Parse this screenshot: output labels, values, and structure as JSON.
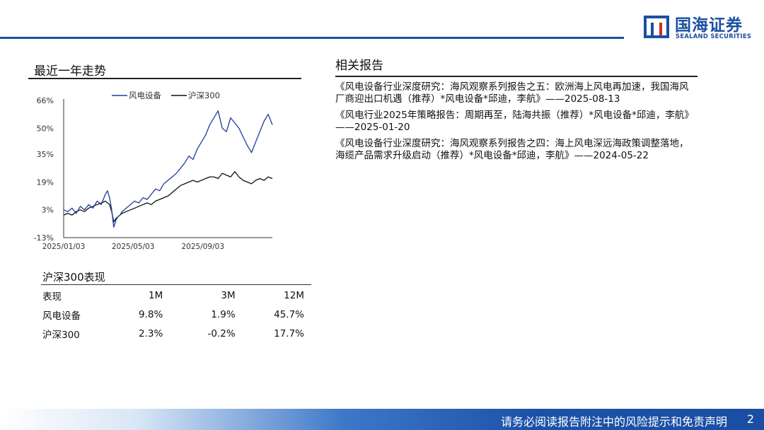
{
  "brand": {
    "name_cn": "国海证券",
    "name_en": "SEALAND SECURITIES",
    "color": "#1b4fa0"
  },
  "left": {
    "title": "最近一年走势"
  },
  "right": {
    "title": "相关报告",
    "reports": [
      "《风电设备行业深度研究：海风观察系列报告之五：欧洲海上风电再加速，我国海风厂商迎出口机遇（推荐）*风电设备*邱迪，李航》——2025-08-13",
      "《风电行业2025年策略报告：周期再至，陆海共振（推荐）*风电设备*邱迪，李航》——2025-01-20",
      "《风电设备行业深度研究：海风观察系列报告之四：海上风电深远海政策调整落地，海缆产品需求升级启动（推荐）*风电设备*邱迪，李航》——2024-05-22"
    ]
  },
  "chart_data": {
    "type": "line",
    "title": "",
    "xlabel": "",
    "ylabel": "",
    "x_range": [
      "2025/01/03",
      "2026/01/03"
    ],
    "ylim": [
      -13,
      66
    ],
    "y_ticks": [
      "66%",
      "50%",
      "35%",
      "19%",
      "3%",
      "-13%"
    ],
    "y_tick_values": [
      66,
      50,
      35,
      19,
      3,
      -13
    ],
    "x_ticks": [
      "2025/01/03",
      "2025/05/03",
      "2025/09/03"
    ],
    "x_tick_values": [
      0,
      0.333,
      0.667
    ],
    "legend_position": "top",
    "grid": false,
    "series": [
      {
        "name": "风电设备",
        "color": "#1f3d99",
        "x": [
          0,
          0.02,
          0.04,
          0.06,
          0.08,
          0.1,
          0.12,
          0.14,
          0.16,
          0.18,
          0.2,
          0.21,
          0.22,
          0.23,
          0.24,
          0.25,
          0.26,
          0.27,
          0.28,
          0.3,
          0.32,
          0.34,
          0.36,
          0.38,
          0.4,
          0.42,
          0.44,
          0.46,
          0.48,
          0.5,
          0.52,
          0.54,
          0.56,
          0.58,
          0.6,
          0.62,
          0.64,
          0.66,
          0.68,
          0.7,
          0.72,
          0.74,
          0.76,
          0.78,
          0.8,
          0.82,
          0.84,
          0.86,
          0.88,
          0.9,
          0.92,
          0.94,
          0.96,
          0.98,
          1.0
        ],
        "values": [
          3,
          2,
          4,
          1,
          5,
          3,
          6,
          4,
          8,
          6,
          12,
          14,
          10,
          3,
          -7,
          -3,
          -1,
          0,
          2,
          4,
          6,
          8,
          7,
          10,
          9,
          12,
          15,
          14,
          18,
          20,
          22,
          24,
          27,
          30,
          34,
          32,
          38,
          42,
          46,
          52,
          56,
          60,
          50,
          48,
          56,
          53,
          50,
          45,
          40,
          36,
          42,
          48,
          54,
          58,
          52
        ]
      },
      {
        "name": "沪深300",
        "color": "#111111",
        "x": [
          0,
          0.02,
          0.04,
          0.06,
          0.08,
          0.1,
          0.12,
          0.14,
          0.16,
          0.18,
          0.2,
          0.21,
          0.22,
          0.23,
          0.24,
          0.25,
          0.26,
          0.27,
          0.28,
          0.3,
          0.32,
          0.34,
          0.36,
          0.38,
          0.4,
          0.42,
          0.44,
          0.46,
          0.48,
          0.5,
          0.52,
          0.54,
          0.56,
          0.58,
          0.6,
          0.62,
          0.64,
          0.66,
          0.68,
          0.7,
          0.72,
          0.74,
          0.76,
          0.78,
          0.8,
          0.82,
          0.84,
          0.86,
          0.88,
          0.9,
          0.92,
          0.94,
          0.96,
          0.98,
          1.0
        ],
        "values": [
          0,
          1,
          0,
          2,
          3,
          2,
          4,
          5,
          6,
          7,
          8,
          7,
          6,
          2,
          -4,
          -2,
          -1,
          0,
          1,
          2,
          3,
          4,
          5,
          6,
          7,
          6,
          8,
          9,
          10,
          11,
          13,
          15,
          17,
          18,
          19,
          20,
          19,
          20,
          21,
          22,
          22,
          21,
          24,
          23,
          22,
          25,
          22,
          20,
          19,
          18,
          20,
          21,
          20,
          22,
          21
        ]
      }
    ]
  },
  "performance": {
    "title": "沪深300表现",
    "headers": [
      "表现",
      "1M",
      "3M",
      "12M"
    ],
    "rows": [
      [
        "风电设备",
        "9.8%",
        "1.9%",
        "45.7%"
      ],
      [
        "沪深300",
        "2.3%",
        "-0.2%",
        "17.7%"
      ]
    ]
  },
  "footer": {
    "disclaimer": "请务必阅读报告附注中的风险提示和免责声明",
    "page": "2"
  }
}
